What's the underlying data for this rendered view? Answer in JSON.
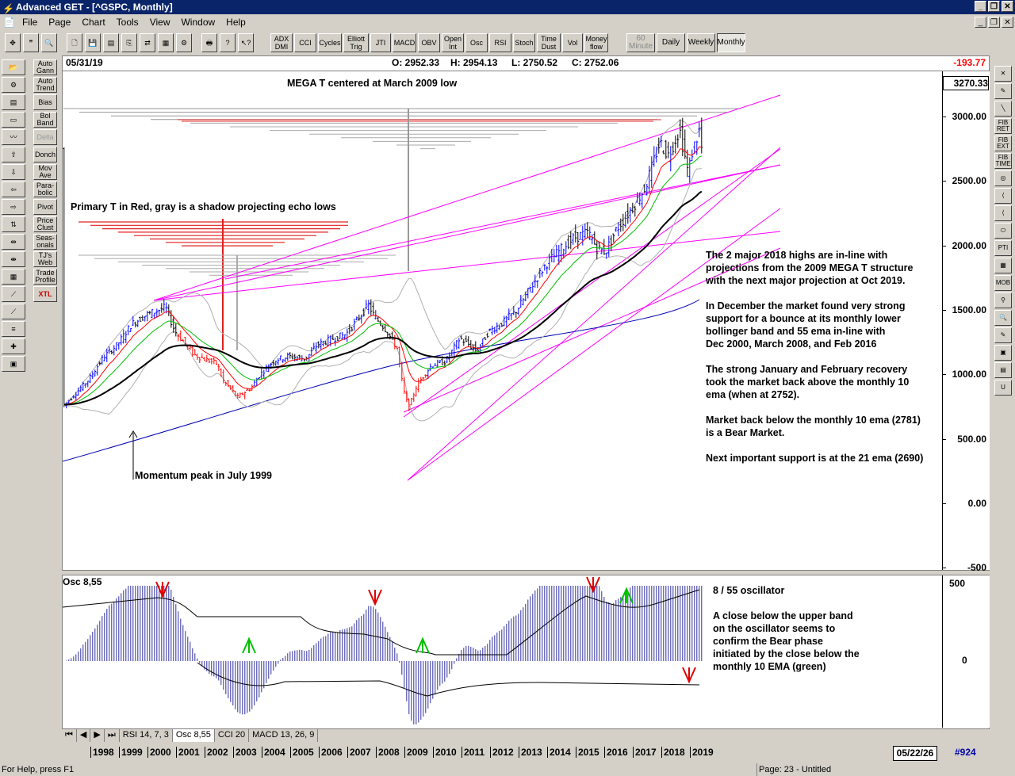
{
  "window": {
    "title": "Advanced GET - [^GSPC, Monthly]"
  },
  "menu": [
    "File",
    "Page",
    "Chart",
    "Tools",
    "View",
    "Window",
    "Help"
  ],
  "toolbar": {
    "indicators": [
      {
        "name": "adx-dmi-button",
        "label": "ADX DMI"
      },
      {
        "name": "cci-button",
        "label": "CCI"
      },
      {
        "name": "cycles-button",
        "label": "Cycles"
      },
      {
        "name": "elliott-trig-button",
        "label": "Elliott Trig"
      },
      {
        "name": "jti-button",
        "label": "JTI"
      },
      {
        "name": "macd-button",
        "label": "MACD"
      },
      {
        "name": "obv-button",
        "label": "OBV"
      },
      {
        "name": "open-int-button",
        "label": "Open Int"
      },
      {
        "name": "osc-button",
        "label": "Osc"
      },
      {
        "name": "rsi-button",
        "label": "RSI"
      },
      {
        "name": "stoch-button",
        "label": "Stoch"
      },
      {
        "name": "time-dust-button",
        "label": "Time Dust"
      },
      {
        "name": "vol-button",
        "label": "Vol"
      },
      {
        "name": "money-flow-button",
        "label": "Money flow"
      }
    ],
    "timeframes": [
      {
        "name": "60-minute-button",
        "label": "60 Minute"
      },
      {
        "name": "daily-button",
        "label": "Daily"
      },
      {
        "name": "weekly-button",
        "label": "Weekly"
      },
      {
        "name": "monthly-button",
        "label": "Monthly"
      }
    ]
  },
  "left_tools": [
    {
      "name": "auto-gann-button",
      "label": "Auto Gann"
    },
    {
      "name": "auto-trend-button",
      "label": "Auto Trend"
    },
    {
      "name": "bias-button",
      "label": "Bias"
    },
    {
      "name": "bol-band-button",
      "label": "Bol Band"
    },
    {
      "name": "delta-button",
      "label": "Delta"
    },
    {
      "name": "donch-button",
      "label": "Donch"
    },
    {
      "name": "mov-ave-button",
      "label": "Mov Ave"
    },
    {
      "name": "parabolic-button",
      "label": "Para- bolic"
    },
    {
      "name": "pivot-button",
      "label": "Pivot"
    },
    {
      "name": "price-clust-button",
      "label": "Price Clust"
    },
    {
      "name": "seasonals-button",
      "label": "Seas- onals"
    },
    {
      "name": "tjs-web-button",
      "label": "TJ's Web"
    },
    {
      "name": "trade-profile-button",
      "label": "Trade Profile"
    },
    {
      "name": "xtl-button",
      "label": "XTL"
    }
  ],
  "left_icons": [
    "Elliott",
    "RESET",
    "STUDY",
    "LINES",
    "GANN",
    "FIB"
  ],
  "quote": {
    "date": "05/31/19",
    "open": "O: 2952.33",
    "high": "H: 2954.13",
    "low": "L: 2750.52",
    "close": "C: 2752.06",
    "change": "-193.77",
    "last_price": "3270.33"
  },
  "annotations": {
    "mega_t": "MEGA T centered at March 2009 low",
    "primary_t": "Primary T in Red, gray is a shadow projecting echo lows",
    "momentum": "Momentum peak in July 1999",
    "note1": [
      "The 2 major 2018 highs are in-line with",
      "projections from the 2009 MEGA T structure",
      "with the next major projection at Oct 2019."
    ],
    "note2": [
      "In December the market found very strong",
      "support for a bounce at its monthly lower",
      "bollinger band and 55 ema in-line with",
      "Dec 2000, March 2008, and Feb 2016"
    ],
    "note3": [
      "The strong January and February recovery",
      "took the market back above the monthly 10",
      "ema (when at 2752)."
    ],
    "note4": [
      "Market back below the monthly 10 ema (2781)",
      "is a Bear Market."
    ],
    "note5": [
      "Next important support is at the 21 ema (2690)"
    ]
  },
  "price_axis": [
    "3000.00",
    "2500.00",
    "2000.00",
    "1500.00",
    "1000.00",
    "500.00",
    "0.00",
    "-500"
  ],
  "osc_panel": {
    "label": "Osc 8,55",
    "axis": [
      "500",
      "0"
    ],
    "title": "8 / 55 oscillator",
    "note": [
      "A close below the upper band",
      "on the oscillator seems to",
      "confirm the Bear phase",
      "initiated by the close below the",
      "monthly 10 EMA (green)"
    ]
  },
  "tabs": [
    "RSI 14, 7, 3",
    "Osc 8,55",
    "CCI 20",
    "MACD 13, 26, 9"
  ],
  "active_tab": "Osc 8,55",
  "years": [
    "1998",
    "1999",
    "2000",
    "2001",
    "2002",
    "2003",
    "2004",
    "2005",
    "2006",
    "2007",
    "2008",
    "2009",
    "2010",
    "2011",
    "2012",
    "2013",
    "2014",
    "2015",
    "2016",
    "2017",
    "2018",
    "2019"
  ],
  "date_box": "05/22/26",
  "count": "#924",
  "status": {
    "help": "For Help, press F1",
    "page": "Page: 23 - Untitled"
  },
  "colors": {
    "title_bar": "#0a246a",
    "up_bars": "#0000ff",
    "down_bars": "#ff0000",
    "magenta_lines": "#ff00ff",
    "ema10": "#ff0000",
    "ema21": "#00c000",
    "ema55": "#000000",
    "long_ma": "#0000b0",
    "change": "#ff0000"
  }
}
